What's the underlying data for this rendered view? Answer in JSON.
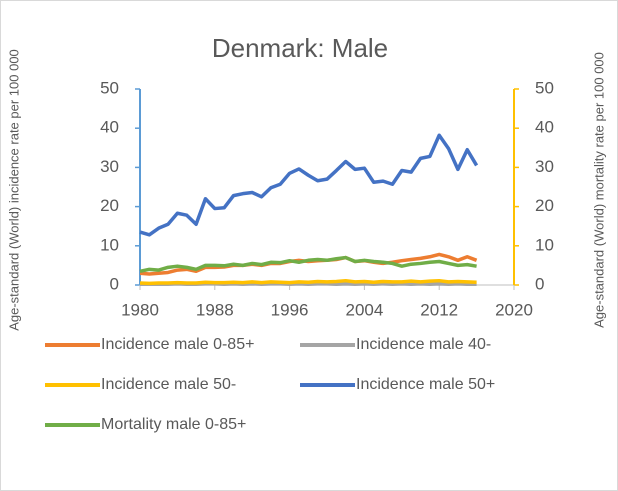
{
  "chart_data": {
    "type": "line",
    "title": "Denmark: Male",
    "y_label": "Age-standard (World) incidence rate per 100 000",
    "y2_label": "Age-standard (World) mortality rate per 100 000",
    "x": [
      1980,
      1981,
      1982,
      1983,
      1984,
      1985,
      1986,
      1987,
      1988,
      1989,
      1990,
      1991,
      1992,
      1993,
      1994,
      1995,
      1996,
      1997,
      1998,
      1999,
      2000,
      2001,
      2002,
      2003,
      2004,
      2005,
      2006,
      2007,
      2008,
      2009,
      2010,
      2011,
      2012,
      2013,
      2014,
      2015,
      2016
    ],
    "xlim": [
      1980,
      2020
    ],
    "xticks": [
      1980,
      1988,
      1996,
      2004,
      2012,
      2020
    ],
    "ylim": [
      0,
      50
    ],
    "yticks": [
      0,
      10,
      20,
      30,
      40,
      50
    ],
    "y2lim": [
      0,
      50
    ],
    "y2ticks": [
      0,
      10,
      20,
      30,
      40,
      50
    ],
    "y_axis_color": "#5b9bd5",
    "y2_axis_color": "#ffc000",
    "series": [
      {
        "name": "Incidence male 0-85+",
        "color": "#ed7d31",
        "values": [
          3.0,
          2.8,
          3.0,
          3.2,
          3.8,
          4.0,
          3.5,
          4.5,
          4.5,
          4.6,
          5.0,
          5.0,
          5.3,
          5.0,
          5.5,
          5.5,
          6.0,
          6.3,
          6.0,
          6.2,
          6.3,
          6.5,
          7.0,
          6.0,
          6.2,
          5.8,
          5.5,
          5.8,
          6.2,
          6.5,
          6.8,
          7.2,
          7.8,
          7.2,
          6.3,
          7.2,
          6.3
        ]
      },
      {
        "name": "Incidence male 40-",
        "color": "#a5a5a5",
        "values": [
          0.2,
          0.2,
          0.2,
          0.2,
          0.3,
          0.2,
          0.2,
          0.3,
          0.3,
          0.2,
          0.3,
          0.2,
          0.3,
          0.2,
          0.3,
          0.3,
          0.2,
          0.3,
          0.2,
          0.3,
          0.3,
          0.2,
          0.3,
          0.2,
          0.3,
          0.2,
          0.3,
          0.2,
          0.3,
          0.2,
          0.3,
          0.2,
          0.3,
          0.2,
          0.3,
          0.2,
          0.2
        ]
      },
      {
        "name": "Incidence male 50-",
        "color": "#ffc000",
        "values": [
          0.5,
          0.4,
          0.5,
          0.5,
          0.6,
          0.5,
          0.5,
          0.7,
          0.6,
          0.6,
          0.7,
          0.6,
          0.8,
          0.6,
          0.8,
          0.7,
          0.6,
          0.8,
          0.7,
          0.9,
          0.8,
          0.9,
          1.1,
          0.8,
          0.9,
          0.7,
          0.9,
          0.8,
          0.8,
          1.0,
          0.8,
          1.0,
          1.1,
          0.8,
          0.9,
          0.8,
          0.7
        ]
      },
      {
        "name": "Incidence male 50+",
        "color": "#4472c4",
        "values": [
          13.5,
          12.8,
          14.5,
          15.5,
          18.3,
          17.8,
          15.5,
          22.0,
          19.5,
          19.7,
          22.8,
          23.3,
          23.6,
          22.5,
          24.8,
          25.7,
          28.5,
          29.6,
          28.0,
          26.6,
          27.0,
          29.2,
          31.5,
          29.5,
          29.8,
          26.2,
          26.5,
          25.7,
          29.2,
          28.8,
          32.3,
          32.8,
          38.2,
          34.8,
          29.5,
          34.5,
          30.5
        ]
      },
      {
        "name": "Mortality male 0-85+",
        "color": "#70ad47",
        "axis": "y2",
        "values": [
          3.5,
          4.0,
          3.8,
          4.5,
          4.8,
          4.5,
          4.0,
          5.0,
          5.0,
          4.9,
          5.3,
          5.0,
          5.5,
          5.2,
          5.8,
          5.7,
          6.2,
          5.8,
          6.3,
          6.5,
          6.3,
          6.7,
          7.0,
          6.0,
          6.3,
          6.0,
          5.8,
          5.5,
          4.8,
          5.3,
          5.5,
          5.8,
          6.0,
          5.5,
          5.0,
          5.2,
          4.8
        ]
      }
    ]
  }
}
